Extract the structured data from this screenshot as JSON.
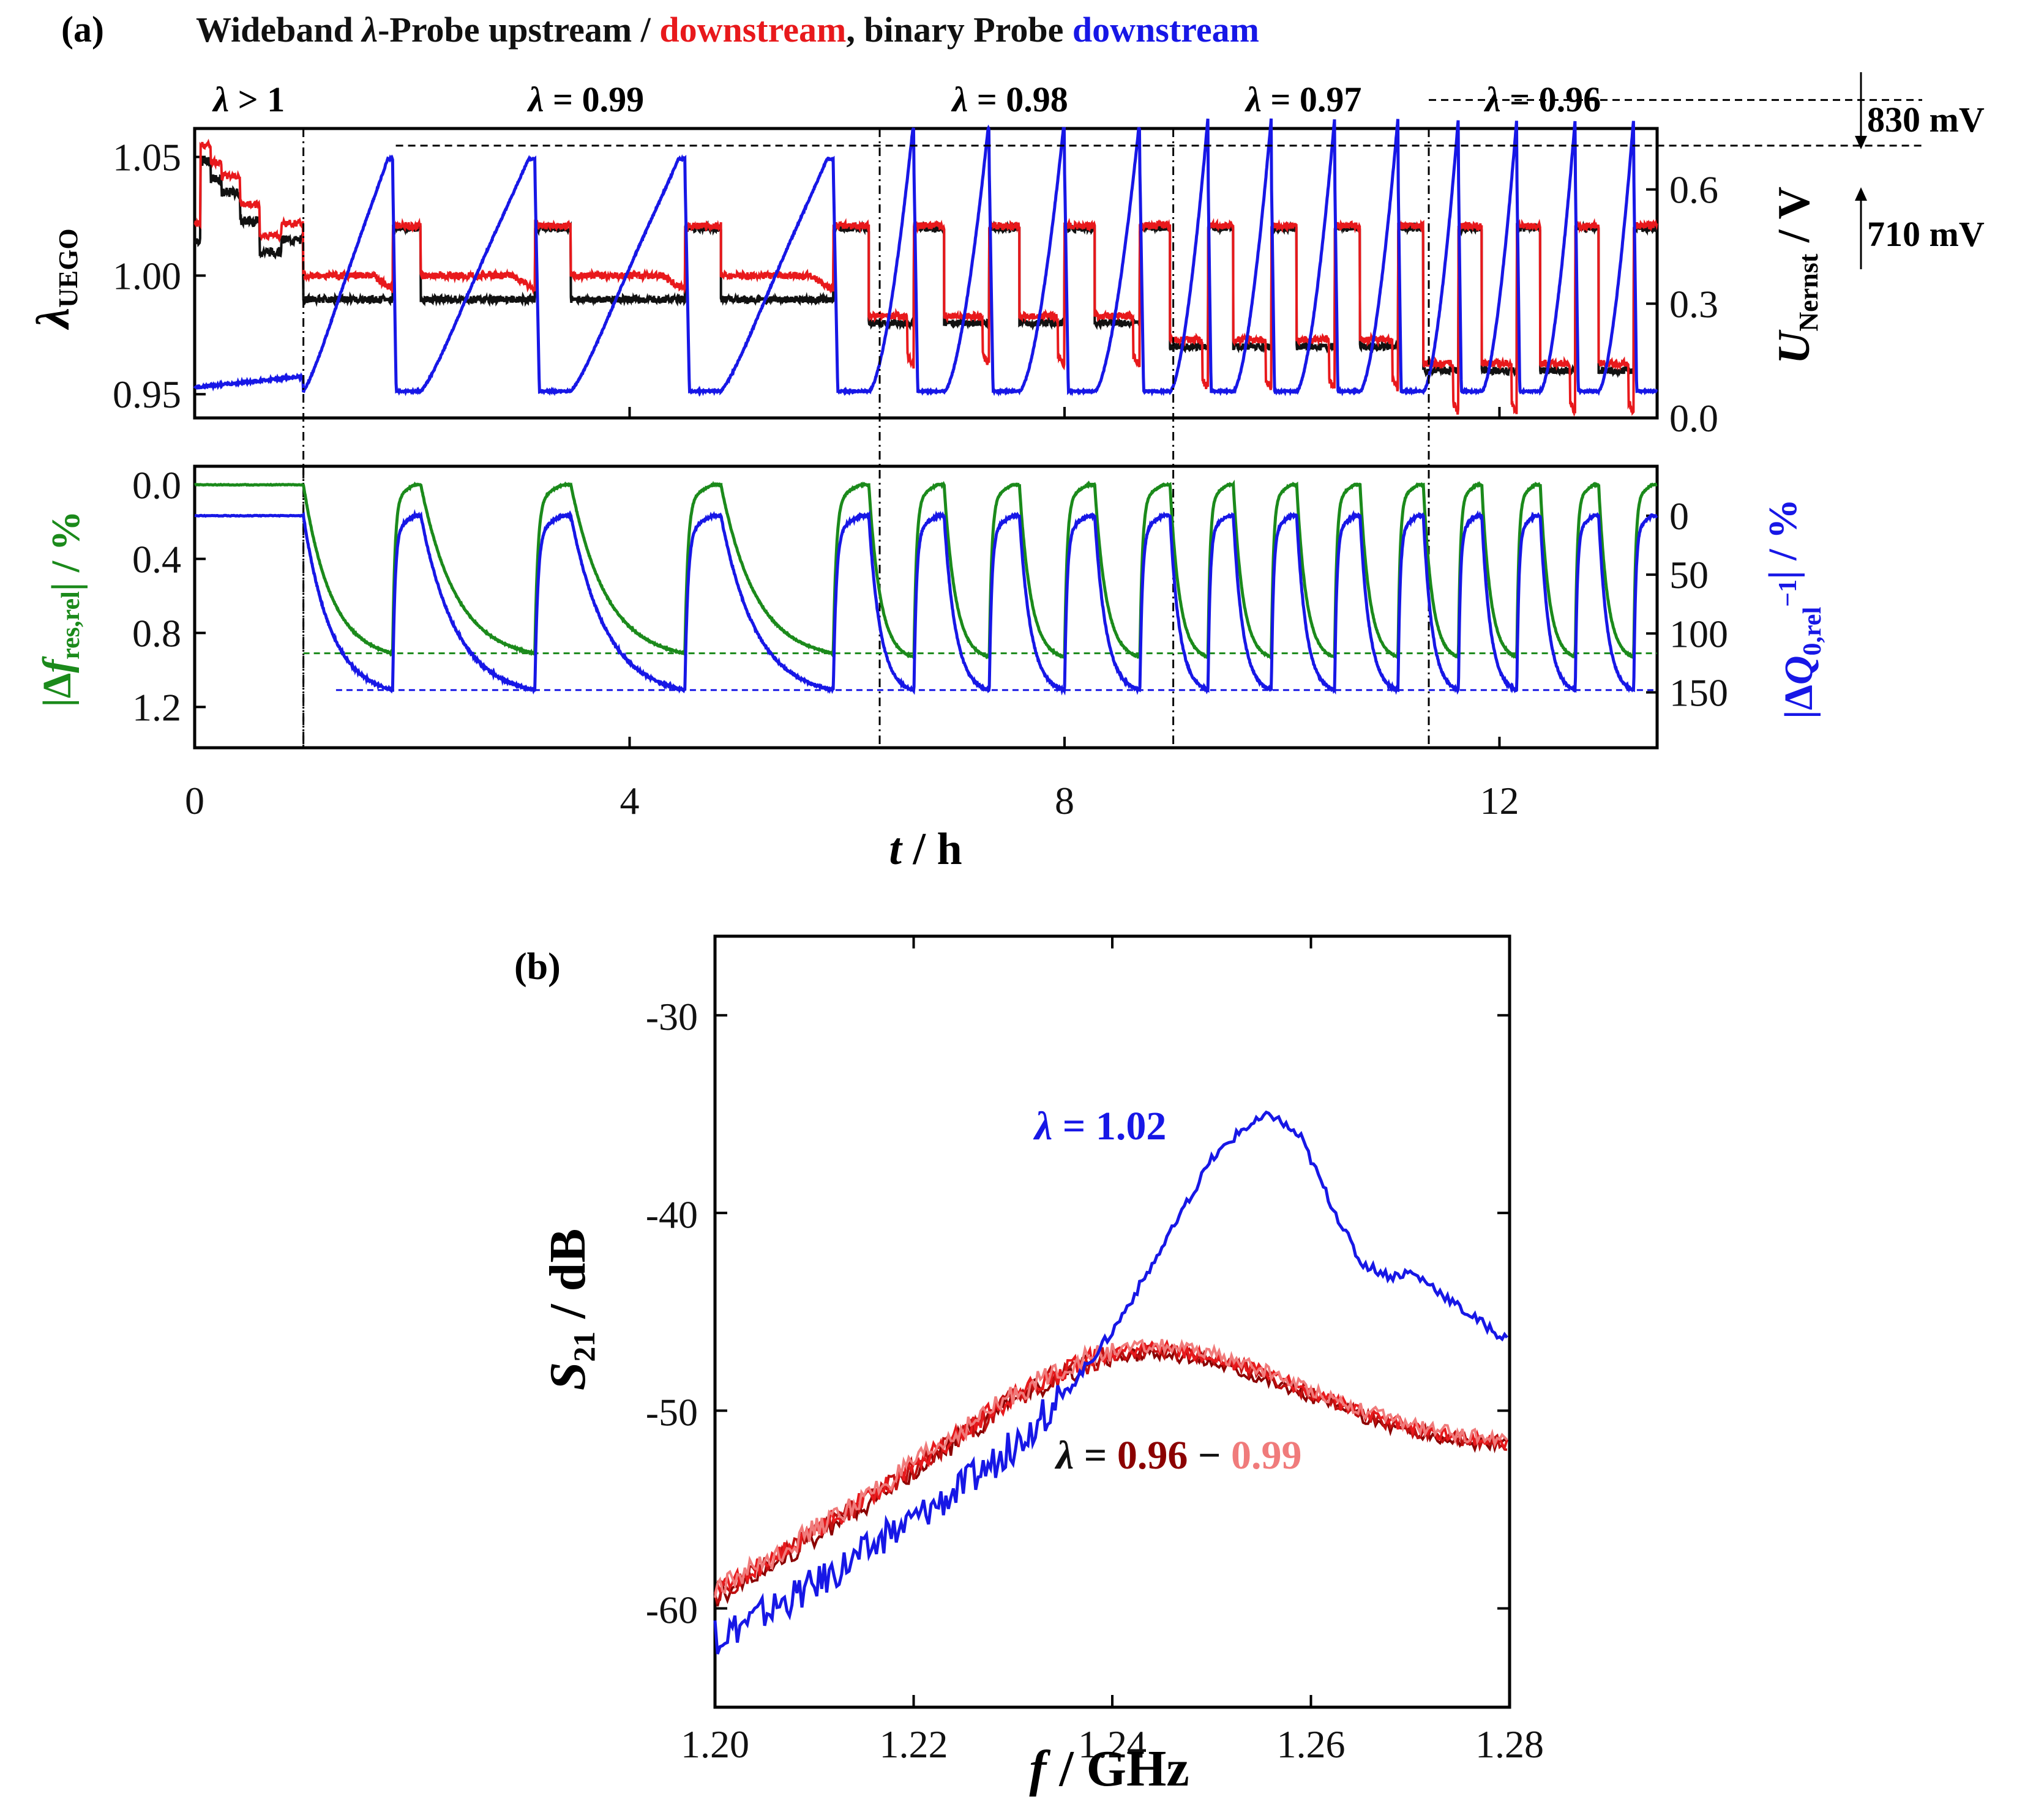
{
  "colors": {
    "upstream": "#111111",
    "downstream": "#e8191c",
    "binary": "#1717e6",
    "green": "#1b8a1b",
    "blue": "#1717e6",
    "dark_red": "#8b0000",
    "light_red": "#f07b7b"
  },
  "panel_a": {
    "label": "(a)",
    "title_parts": [
      {
        "text": "Wideband ",
        "color": "#111111"
      },
      {
        "text": "λ",
        "color": "#111111",
        "italic": true
      },
      {
        "text": "-Probe upstream / ",
        "color": "#111111"
      },
      {
        "text": "downstream",
        "color": "#e8191c"
      },
      {
        "text": ", binary Probe ",
        "color": "#111111"
      },
      {
        "text": "downstream",
        "color": "#1717e6"
      }
    ],
    "segments": [
      {
        "sym": "λ",
        "text": " > 1",
        "t": 0.5
      },
      {
        "sym": "λ",
        "text": " = 0.99",
        "t": 3.6
      },
      {
        "sym": "λ",
        "text": " = 0.98",
        "t": 7.5
      },
      {
        "sym": "λ",
        "text": " = 0.97",
        "t": 10.2
      },
      {
        "sym": "λ",
        "text": " = 0.96",
        "t": 12.4
      }
    ],
    "boundaries_h": [
      1.0,
      6.3,
      9.0,
      11.35
    ],
    "mv_high": "830 mV",
    "mv_low": "710 mV",
    "top": {
      "ylabel_main": "λ",
      "ylabel_sub": "UEGO",
      "yticks": [
        "0.95",
        "1.00",
        "1.05"
      ],
      "ylim": [
        0.94,
        1.062
      ],
      "y2label_main": "U",
      "y2label_sub": "Nernst",
      "y2label_unit": " / V",
      "y2ticks": [
        "0.0",
        "0.3",
        "0.6"
      ],
      "y2lim": [
        0.0,
        0.76
      ]
    },
    "bottom": {
      "ylabel_left_parts": [
        {
          "t": "|Δ"
        },
        {
          "t": "f",
          "i": true
        },
        {
          "t": "res,rel",
          "sub": true
        },
        {
          "t": "| / %"
        }
      ],
      "yticks": [
        "0.0",
        "0.4",
        "0.8",
        "1.2"
      ],
      "ylim": [
        1.42,
        -0.1
      ],
      "ylabel_right_parts": [
        {
          "t": "|Δ"
        },
        {
          "t": "Q",
          "i": true
        },
        {
          "t": "0,rel",
          "sub": true
        },
        {
          "t": "−1",
          "sup": true
        },
        {
          "t": "| / %"
        }
      ],
      "y2ticks": [
        "0",
        "50",
        "100",
        "150"
      ],
      "y2lim": [
        197,
        -42
      ]
    },
    "xlabel_italic": "t",
    "xlabel_rest": " / h",
    "xticks": [
      "0",
      "4",
      "8",
      "12"
    ],
    "xlim": [
      0,
      13.45
    ]
  },
  "panel_b": {
    "label": "(b)",
    "ylabel_main": "S",
    "ylabel_sub": "21",
    "ylabel_rest": " / dB",
    "xlabel_italic": "f",
    "xlabel_rest": " / GHz",
    "xticks": [
      "1.20",
      "1.22",
      "1.24",
      "1.26",
      "1.28"
    ],
    "yticks": [
      "-60",
      "-50",
      "-40",
      "-30"
    ],
    "xlim": [
      1.2,
      1.28
    ],
    "ylim": [
      -65,
      -26
    ],
    "annot_blue_sym": "λ",
    "annot_blue_val": " = 1.02",
    "annot_red_sym": "λ",
    "annot_red_eq": " = ",
    "annot_red_v1": "0.96",
    "annot_red_dash": " − ",
    "annot_red_v2": "0.99"
  },
  "chart_data": [
    {
      "type": "line",
      "panel": "(a) top",
      "title": "Wideband λ-Probe upstream / downstream, binary Probe downstream",
      "xlabel": "t / h",
      "ylabel": "λUEGO",
      "y2label": "UNernst / V",
      "xlim": [
        0,
        13.45
      ],
      "ylim": [
        0.94,
        1.062
      ],
      "y2lim": [
        0.0,
        0.76
      ],
      "series": [
        {
          "name": "upstream",
          "axis": "left",
          "description_values": {
            "t": [
              0,
              0.1,
              0.35,
              0.55,
              0.75,
              0.95,
              1.0,
              2.1,
              2.1,
              2.45,
              3.45,
              3.5,
              3.85,
              4.85,
              4.9,
              5.25,
              6.2,
              6.3,
              6.7,
              7.0,
              7.05,
              7.4,
              7.75,
              7.8,
              8.15,
              8.5,
              8.55,
              9.0,
              9.3,
              9.65,
              10.0,
              10.35,
              10.75,
              11.1,
              11.35,
              11.7,
              12.1,
              12.5,
              12.85,
              13.45
            ],
            "lambda": [
              1.02,
              1.048,
              1.04,
              1.027,
              1.01,
              1.02,
              0.99,
              0.99,
              1.02,
              0.99,
              0.99,
              1.02,
              0.99,
              0.99,
              1.02,
              0.99,
              0.99,
              1.02,
              0.98,
              1.02,
              0.98,
              1.02,
              0.98,
              1.02,
              0.98,
              1.02,
              0.98,
              1.02,
              0.97,
              1.02,
              0.97,
              1.02,
              0.97,
              1.02,
              0.96,
              1.02,
              0.96,
              1.02,
              0.96,
              1.02
            ]
          }
        },
        {
          "name": "downstream",
          "axis": "left"
        },
        {
          "name": "downstream (binary)",
          "axis": "right"
        }
      ],
      "annotations": [
        "λ > 1",
        "λ = 0.99",
        "λ = 0.98",
        "λ = 0.97",
        "λ = 0.96",
        "830 mV",
        "710 mV"
      ]
    },
    {
      "type": "line",
      "panel": "(a) bottom",
      "xlabel": "t / h",
      "ylabel": "|Δfres,rel| / %",
      "y2label": "|ΔQ0,rel−1| / %",
      "xlim": [
        0,
        13.45
      ],
      "ylim": [
        1.42,
        -0.1
      ],
      "y2lim": [
        197,
        -42
      ],
      "series": [
        {
          "name": "|Δfres,rel|",
          "axis": "left",
          "min": 0.0,
          "max": 0.91
        },
        {
          "name": "|ΔQ0,rel−1|",
          "axis": "right",
          "min": 0,
          "max": 148
        }
      ]
    },
    {
      "type": "line",
      "panel": "(b)",
      "xlabel": "f / GHz",
      "ylabel": "S21 / dB",
      "xlim": [
        1.2,
        1.28
      ],
      "ylim": [
        -65,
        -26
      ],
      "series": [
        {
          "name": "λ = 1.02",
          "x": [
            1.2,
            1.205,
            1.21,
            1.215,
            1.22,
            1.225,
            1.23,
            1.235,
            1.24,
            1.245,
            1.25,
            1.253,
            1.256,
            1.259,
            1.262,
            1.265,
            1.268,
            1.27,
            1.272,
            1.275,
            1.28
          ],
          "y": [
            -61.5,
            -60.2,
            -58.8,
            -57.2,
            -55.5,
            -53.8,
            -51.8,
            -49.3,
            -46.0,
            -41.8,
            -37.3,
            -35.8,
            -35.0,
            -36.2,
            -39.5,
            -42.5,
            -43.2,
            -43.0,
            -43.6,
            -44.8,
            -46.5
          ]
        },
        {
          "name": "λ = 0.96 − 0.99",
          "x": [
            1.2,
            1.205,
            1.21,
            1.215,
            1.22,
            1.225,
            1.23,
            1.235,
            1.24,
            1.245,
            1.25,
            1.255,
            1.26,
            1.265,
            1.27,
            1.275,
            1.28
          ],
          "y": [
            -59.3,
            -57.8,
            -56.2,
            -54.6,
            -52.9,
            -51.1,
            -49.4,
            -48.0,
            -47.1,
            -46.9,
            -47.3,
            -48.1,
            -49.1,
            -50.1,
            -50.9,
            -51.4,
            -51.6
          ]
        }
      ]
    }
  ]
}
